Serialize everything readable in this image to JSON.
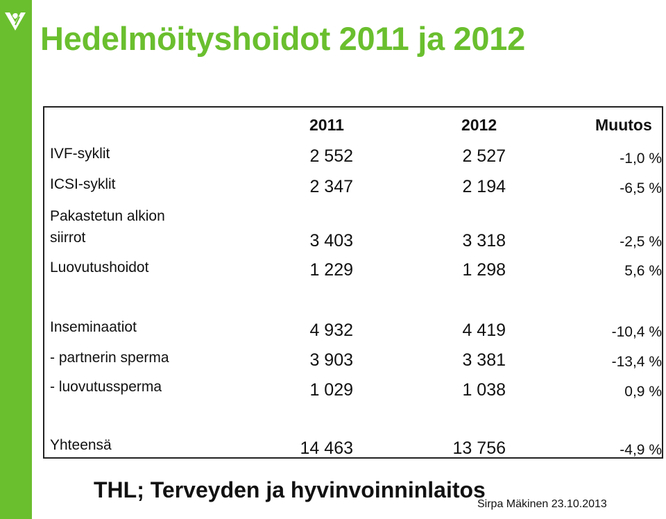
{
  "title": "Hedelmöityshoidot 2011 ja 2012",
  "colors": {
    "accent": "#6abf2e"
  },
  "logo": {
    "icon": "thl-leaf-logo-icon"
  },
  "table": {
    "headers": [
      "2011",
      "2012",
      "Muutos"
    ],
    "rows": [
      {
        "label": "IVF-syklit",
        "v2011": "2 552",
        "v2012": "2 527",
        "change": "-1,0 %"
      },
      {
        "label": "ICSI-syklit",
        "v2011": "2 347",
        "v2012": "2 194",
        "change": "-6,5 %"
      },
      {
        "label_line1": "Pakastetun alkion",
        "label_line2": "siirrot",
        "v2011": "3 403",
        "v2012": "3 318",
        "change": "-2,5 %"
      },
      {
        "label": "Luovutushoidot",
        "v2011": "1 229",
        "v2012": "1 298",
        "change": "5,6 %"
      },
      {
        "label": "Inseminaatiot",
        "v2011": "4 932",
        "v2012": "4 419",
        "change": "-10,4 %"
      },
      {
        "label": "- partnerin sperma",
        "v2011": "3 903",
        "v2012": "3 381",
        "change": "-13,4 %"
      },
      {
        "label": "- luovutussperma",
        "v2011": "1 029",
        "v2012": "1 038",
        "change": "0,9 %"
      },
      {
        "label": "Yhteensä",
        "v2011": "14 463",
        "v2012": "13 756",
        "change": "-4,9 %"
      }
    ]
  },
  "footer": {
    "source": "THL; Terveyden ja hyvinvoinninlaitos",
    "author": "Sirpa Mäkinen 23.10.2013"
  }
}
